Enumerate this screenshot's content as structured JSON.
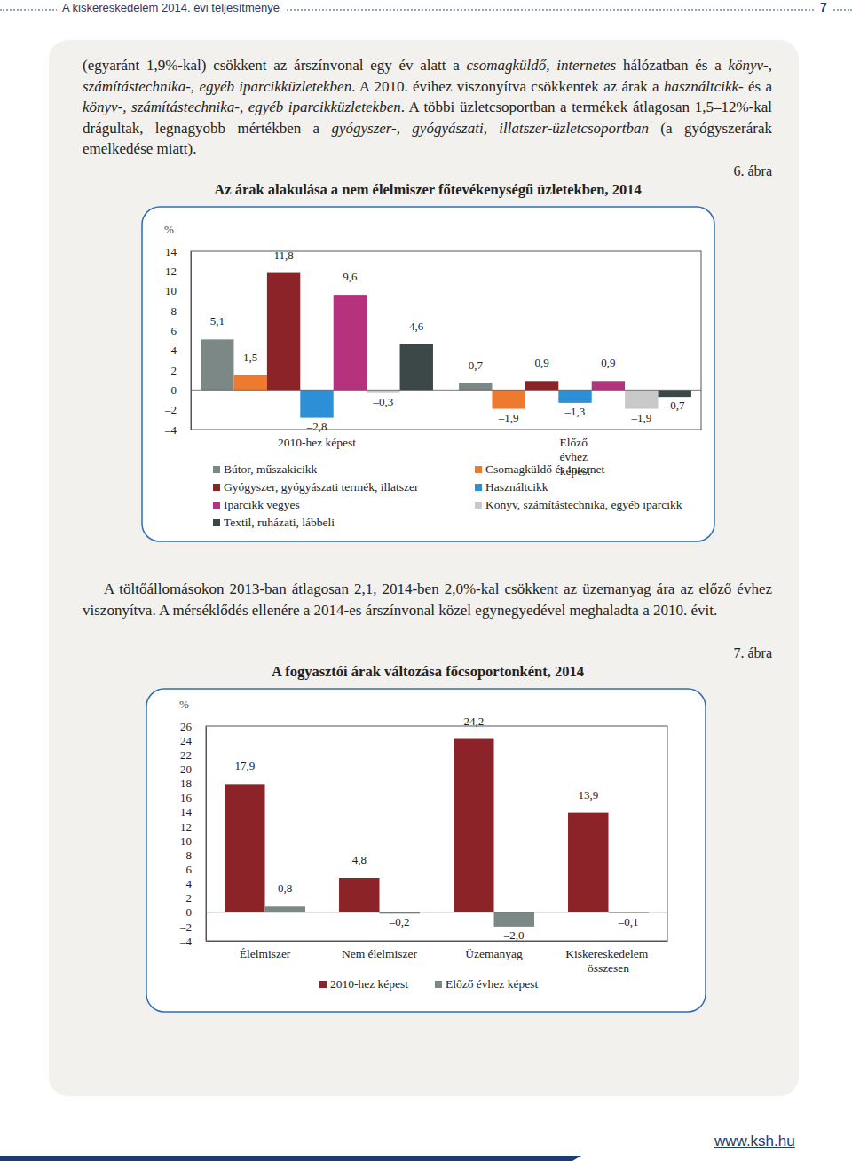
{
  "header": {
    "title": "A kiskereskedelem 2014. évi teljesítménye",
    "page": "7"
  },
  "paragraphs": [
    {
      "runs": [
        {
          "text": "(egyaránt 1,9%-kal) csökkent az árszínvonal egy év alatt a ",
          "italic": false
        },
        {
          "text": "csomagküldő, internetes",
          "italic": true
        },
        {
          "text": " hálózatban és a ",
          "italic": false
        },
        {
          "text": "könyv-, számítástechnika-, egyéb iparcikküzletekben",
          "italic": true
        },
        {
          "text": ". A 2010. évihez viszonyítva csökkentek az árak a ",
          "italic": false
        },
        {
          "text": "használtcikk-",
          "italic": true
        },
        {
          "text": " és a ",
          "italic": false
        },
        {
          "text": "könyv-, számítástechnika-, egyéb iparcikküzletekben",
          "italic": true
        },
        {
          "text": ". A többi üzletcsoportban a termékek átlagosan 1,5–12%-kal drágultak, legnagyobb mértékben a ",
          "italic": false
        },
        {
          "text": "gyógyszer-, gyógyászati, illatszer-üzletcsoportban",
          "italic": true
        },
        {
          "text": " (a gyógyszerárak emelkedése miatt).",
          "italic": false
        }
      ]
    },
    {
      "runs": [
        {
          "text": "A töltőállomásokon 2013-ban átlagosan 2,1, 2014-ben 2,0%-kal csökkent az üzemanyag ára az előző évhez viszonyítva. A mérséklődés ellenére a 2014-es árszínvonal közel egynegyedével meghaladta a 2010. évit.",
          "italic": false
        }
      ]
    }
  ],
  "figure_labels": [
    "6. ábra",
    "7. ábra"
  ],
  "chart_data": [
    {
      "type": "bar",
      "title": "Az árak alakulása a nem élelmiszer főtevékenységű üzletekben, 2014",
      "ylabel": "%",
      "categories": [
        "2010-hez képest",
        "Előző évhez képest"
      ],
      "series": [
        {
          "name": "Bútor, műszakicikk",
          "color": "#7b8886",
          "values": [
            5.1,
            0.7
          ],
          "value_labels": [
            "5,1",
            "0,7"
          ]
        },
        {
          "name": "Csomagküldő és internet",
          "color": "#ed7a2f",
          "values": [
            1.5,
            -1.9
          ],
          "value_labels": [
            "1,5",
            "–1,9"
          ]
        },
        {
          "name": "Gyógyszer, gyógyászati termék, illatszer",
          "color": "#8c2328",
          "values": [
            11.8,
            0.9
          ],
          "value_labels": [
            "11,8",
            "0,9"
          ]
        },
        {
          "name": "Használtcikk",
          "color": "#2d8fd5",
          "values": [
            -2.8,
            -1.3
          ],
          "value_labels": [
            "–2,8",
            "–1,3"
          ]
        },
        {
          "name": "Iparcikk vegyes",
          "color": "#b5327c",
          "values": [
            9.6,
            0.9
          ],
          "value_labels": [
            "9,6",
            "0,9"
          ]
        },
        {
          "name": "Könyv, számítástechnika, egyéb iparcikk",
          "color": "#c9c9c9",
          "values": [
            -0.3,
            -1.9
          ],
          "value_labels": [
            "–0,3",
            "–1,9"
          ]
        },
        {
          "name": "Textil, ruházati, lábbeli",
          "color": "#3c4747",
          "values": [
            4.6,
            -0.7
          ],
          "value_labels": [
            "4,6",
            "–0,7"
          ]
        }
      ],
      "ylim": [
        -4,
        14
      ],
      "yticks": [
        {
          "value": -4,
          "label": "–4"
        },
        {
          "value": -2,
          "label": "–2"
        },
        0,
        2,
        4,
        6,
        8,
        10,
        12,
        14
      ],
      "grid": false,
      "legend": "bottom",
      "data_labels": true
    },
    {
      "type": "bar",
      "title": "A fogyasztói árak változása főcsoportonként, 2014",
      "ylabel": "%",
      "categories": [
        "Élelmiszer",
        "Nem élelmiszer",
        "Üzemanyag",
        "Kiskereskedelem összesen"
      ],
      "series": [
        {
          "name": "2010-hez képest",
          "color": "#8c2328",
          "values": [
            17.9,
            4.8,
            24.2,
            13.9
          ],
          "value_labels": [
            "17,9",
            "4,8",
            "24,2",
            "13,9"
          ]
        },
        {
          "name": "Előző évhez képest",
          "color": "#7b8886",
          "values": [
            0.8,
            -0.2,
            -2.0,
            -0.1
          ],
          "value_labels": [
            "0,8",
            "–0,2",
            "–2,0",
            "–0,1"
          ]
        }
      ],
      "ylim": [
        -4,
        26
      ],
      "yticks": [
        {
          "value": -4,
          "label": "–4"
        },
        {
          "value": -2,
          "label": "–2"
        },
        0,
        2,
        4,
        6,
        8,
        10,
        12,
        14,
        16,
        18,
        20,
        22,
        24,
        26
      ],
      "grid": false,
      "legend": "bottom",
      "data_labels": true
    }
  ],
  "footer": {
    "url": "www.ksh.hu"
  }
}
